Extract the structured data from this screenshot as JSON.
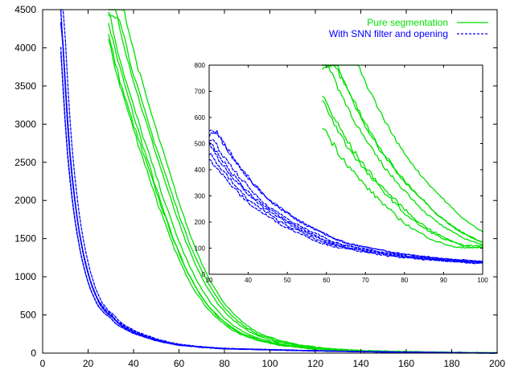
{
  "chart_data": [
    {
      "type": "line",
      "title": "",
      "xlabel": "",
      "ylabel": "",
      "xlim": [
        0,
        200
      ],
      "ylim": [
        0,
        4500
      ],
      "x_ticks": [
        0,
        20,
        40,
        60,
        80,
        100,
        120,
        140,
        160,
        180,
        200
      ],
      "y_ticks": [
        0,
        500,
        1000,
        1500,
        2000,
        2500,
        3000,
        3500,
        4000,
        4500
      ],
      "grid": false,
      "legend_position": "top-right",
      "series": [
        {
          "name": "Pure segmentation",
          "color": "#00e000",
          "line_style": "solid",
          "x": [
            29,
            30,
            31,
            33,
            35,
            37,
            40,
            42,
            45,
            50,
            55,
            60,
            65,
            70,
            75,
            80,
            85,
            90,
            100,
            110,
            120,
            130,
            140,
            160,
            180,
            200
          ],
          "y": [
            4500,
            4390,
            4260,
            4000,
            3770,
            3550,
            3250,
            3060,
            2780,
            2330,
            1880,
            1470,
            1120,
            840,
            620,
            460,
            340,
            250,
            150,
            95,
            60,
            40,
            28,
            14,
            6,
            0
          ]
        },
        {
          "name": "With SNN filter and opening",
          "color": "#0000ff",
          "line_style": "dashed",
          "x": [
            8,
            9,
            10,
            11,
            12,
            13,
            14,
            15,
            16,
            18,
            20,
            22,
            25,
            28,
            30,
            33,
            35,
            40,
            45,
            50,
            55,
            60,
            70,
            80,
            90,
            100,
            120,
            140,
            160,
            180,
            200
          ],
          "y": [
            4500,
            4000,
            3450,
            2980,
            2600,
            2300,
            2030,
            1800,
            1600,
            1280,
            1040,
            850,
            650,
            540,
            500,
            400,
            360,
            280,
            225,
            175,
            140,
            110,
            80,
            60,
            52,
            45,
            30,
            20,
            12,
            6,
            0
          ]
        }
      ]
    },
    {
      "type": "line",
      "title": "",
      "xlabel": "",
      "ylabel": "",
      "xlim": [
        30,
        100
      ],
      "ylim": [
        0,
        800
      ],
      "x_ticks": [
        30,
        40,
        50,
        60,
        70,
        80,
        90,
        100
      ],
      "y_ticks": [
        0,
        100,
        200,
        300,
        400,
        500,
        600,
        700,
        800
      ],
      "grid": false,
      "series": [
        {
          "color": "#00e000",
          "line_style": "solid",
          "x": [
            59,
            60,
            62,
            65,
            68,
            70,
            73,
            75,
            78,
            80,
            83,
            85,
            88,
            90,
            93,
            95,
            98,
            100
          ],
          "y": [
            800,
            760,
            700,
            610,
            530,
            480,
            420,
            380,
            330,
            300,
            255,
            225,
            190,
            170,
            145,
            130,
            115,
            105
          ]
        },
        {
          "color": "#0000ff",
          "line_style": "dashed",
          "x": [
            30,
            32,
            34,
            36,
            38,
            40,
            42,
            44,
            46,
            48,
            50,
            53,
            56,
            60,
            63,
            66,
            70,
            75,
            80,
            85,
            90,
            95,
            100
          ],
          "y": [
            520,
            470,
            430,
            390,
            355,
            320,
            290,
            265,
            245,
            225,
            205,
            180,
            160,
            130,
            115,
            105,
            95,
            80,
            70,
            62,
            55,
            50,
            45
          ]
        }
      ]
    }
  ]
}
